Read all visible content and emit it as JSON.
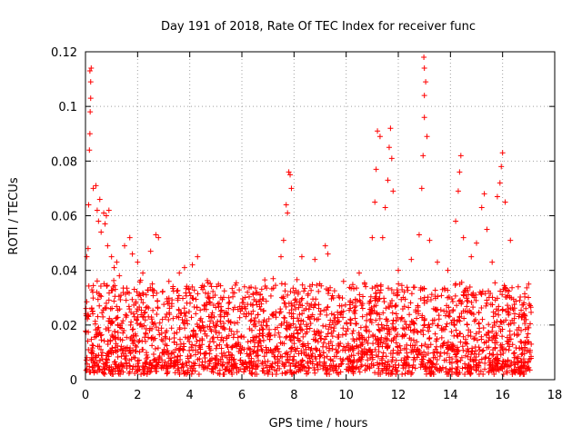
{
  "chart_data": {
    "type": "scatter",
    "title": "Day 191 of 2018, Rate Of TEC Index for receiver func",
    "xlabel": "GPS time / hours",
    "ylabel": "ROTI / TECUs",
    "xlim": [
      0,
      18
    ],
    "ylim": [
      0,
      0.12
    ],
    "xticks": [
      0,
      2,
      4,
      6,
      8,
      10,
      12,
      14,
      16,
      18
    ],
    "yticks": [
      0,
      0.02,
      0.04,
      0.06,
      0.08,
      0.1,
      0.12
    ],
    "xtick_labels": [
      "0",
      "2",
      "4",
      "6",
      "8",
      "10",
      "12",
      "14",
      "16",
      "18"
    ],
    "ytick_labels": [
      "0",
      "0.02",
      "0.04",
      "0.06",
      "0.08",
      "0.1",
      "0.12"
    ],
    "grid": true,
    "marker": "+",
    "color": "#ff0000",
    "series": [
      {
        "name": "ROTI",
        "points": [
          [
            0.05,
            0.045
          ],
          [
            0.1,
            0.048
          ],
          [
            0.12,
            0.064
          ],
          [
            0.15,
            0.084
          ],
          [
            0.17,
            0.09
          ],
          [
            0.18,
            0.098
          ],
          [
            0.2,
            0.103
          ],
          [
            0.2,
            0.109
          ],
          [
            0.17,
            0.113
          ],
          [
            0.22,
            0.114
          ],
          [
            0.3,
            0.07
          ],
          [
            0.4,
            0.071
          ],
          [
            0.45,
            0.062
          ],
          [
            0.5,
            0.058
          ],
          [
            0.55,
            0.066
          ],
          [
            0.6,
            0.054
          ],
          [
            0.7,
            0.061
          ],
          [
            0.75,
            0.057
          ],
          [
            0.8,
            0.06
          ],
          [
            0.85,
            0.049
          ],
          [
            0.9,
            0.062
          ],
          [
            1.0,
            0.045
          ],
          [
            1.1,
            0.041
          ],
          [
            1.2,
            0.043
          ],
          [
            1.3,
            0.038
          ],
          [
            1.5,
            0.049
          ],
          [
            1.7,
            0.052
          ],
          [
            1.8,
            0.046
          ],
          [
            2.0,
            0.043
          ],
          [
            2.2,
            0.039
          ],
          [
            2.5,
            0.047
          ],
          [
            2.7,
            0.053
          ],
          [
            2.8,
            0.052
          ],
          [
            3.2,
            0.036
          ],
          [
            3.6,
            0.039
          ],
          [
            3.8,
            0.041
          ],
          [
            4.1,
            0.042
          ],
          [
            4.3,
            0.045
          ],
          [
            4.5,
            0.033
          ],
          [
            5.1,
            0.035
          ],
          [
            5.5,
            0.03
          ],
          [
            6.1,
            0.034
          ],
          [
            6.7,
            0.031
          ],
          [
            7.2,
            0.037
          ],
          [
            7.5,
            0.045
          ],
          [
            7.6,
            0.051
          ],
          [
            7.7,
            0.064
          ],
          [
            7.75,
            0.061
          ],
          [
            7.8,
            0.076
          ],
          [
            7.85,
            0.075
          ],
          [
            7.9,
            0.07
          ],
          [
            8.3,
            0.045
          ],
          [
            8.8,
            0.044
          ],
          [
            9.2,
            0.049
          ],
          [
            9.3,
            0.046
          ],
          [
            9.9,
            0.036
          ],
          [
            10.5,
            0.039
          ],
          [
            11.0,
            0.052
          ],
          [
            11.1,
            0.065
          ],
          [
            11.15,
            0.077
          ],
          [
            11.2,
            0.091
          ],
          [
            11.3,
            0.089
          ],
          [
            11.4,
            0.052
          ],
          [
            11.5,
            0.063
          ],
          [
            11.6,
            0.073
          ],
          [
            11.65,
            0.085
          ],
          [
            11.7,
            0.092
          ],
          [
            11.75,
            0.081
          ],
          [
            11.8,
            0.069
          ],
          [
            12.0,
            0.04
          ],
          [
            12.5,
            0.044
          ],
          [
            12.8,
            0.053
          ],
          [
            12.9,
            0.07
          ],
          [
            12.95,
            0.082
          ],
          [
            13.0,
            0.096
          ],
          [
            13.0,
            0.104
          ],
          [
            13.05,
            0.109
          ],
          [
            13.0,
            0.114
          ],
          [
            12.98,
            0.118
          ],
          [
            13.1,
            0.089
          ],
          [
            13.2,
            0.051
          ],
          [
            13.5,
            0.043
          ],
          [
            13.9,
            0.04
          ],
          [
            14.2,
            0.058
          ],
          [
            14.3,
            0.069
          ],
          [
            14.35,
            0.076
          ],
          [
            14.4,
            0.082
          ],
          [
            14.5,
            0.052
          ],
          [
            14.8,
            0.045
          ],
          [
            15.0,
            0.05
          ],
          [
            15.2,
            0.063
          ],
          [
            15.3,
            0.068
          ],
          [
            15.4,
            0.055
          ],
          [
            15.6,
            0.043
          ],
          [
            15.8,
            0.067
          ],
          [
            15.9,
            0.072
          ],
          [
            15.95,
            0.078
          ],
          [
            16.0,
            0.083
          ],
          [
            16.1,
            0.065
          ],
          [
            16.3,
            0.051
          ],
          [
            16.6,
            0.034
          ],
          [
            16.9,
            0.022
          ],
          [
            17.0,
            0.035
          ],
          [
            17.05,
            0.01
          ]
        ],
        "dense_band": {
          "x_range": [
            0,
            17.1
          ],
          "y_range": [
            0.003,
            0.035
          ],
          "description": "dense cloud of ROTI samples"
        }
      }
    ]
  }
}
